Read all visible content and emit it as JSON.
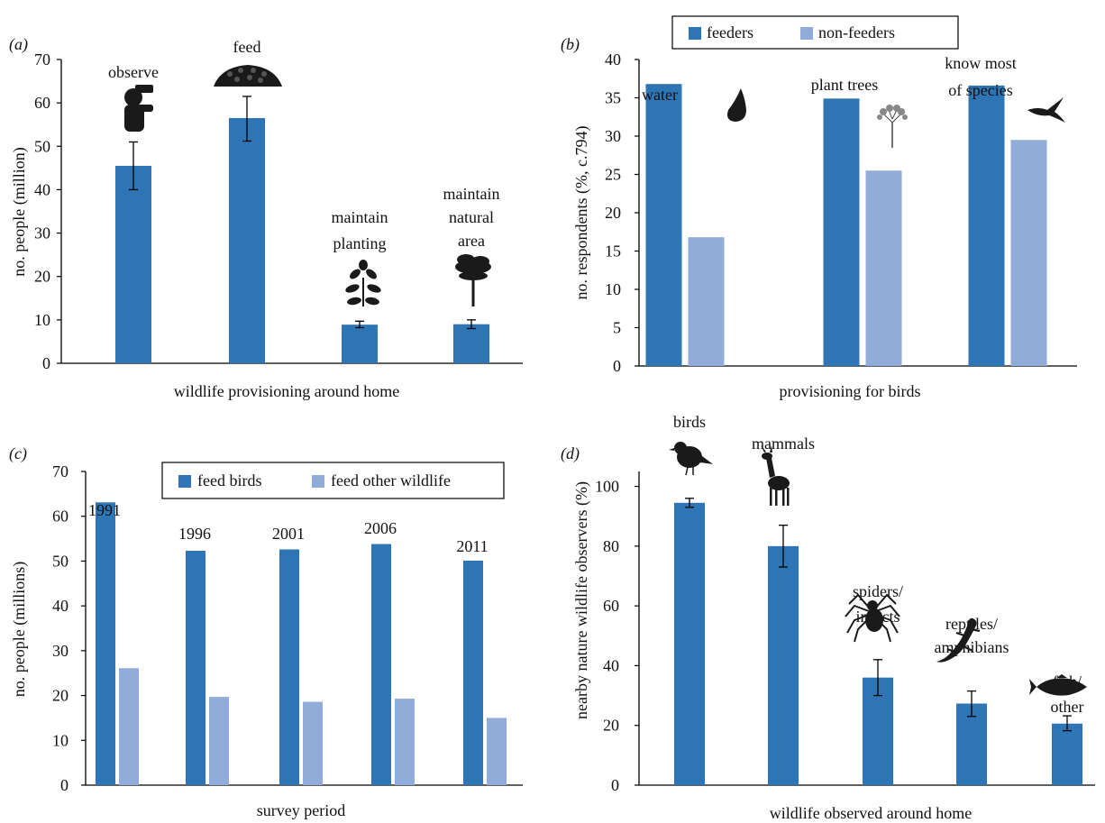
{
  "colors": {
    "primary": "#2E75B6",
    "secondary": "#91ACD9",
    "icon": "#1A1A1A",
    "axis": "#000000"
  },
  "chart_data": [
    {
      "panel_label": "(a)",
      "type": "bar",
      "xlabel": "wildlife provisioning around home",
      "ylabel": "no. people (million)",
      "ylim": [
        0,
        70
      ],
      "yticks": [
        0,
        10,
        20,
        30,
        40,
        50,
        60,
        70
      ],
      "categories": [
        "observe",
        "feed",
        "maintain planting",
        "maintain natural area"
      ],
      "category_labels": [
        [
          "observe"
        ],
        [
          "feed"
        ],
        [
          "maintain",
          "planting"
        ],
        [
          "maintain",
          "natural",
          "area"
        ]
      ],
      "icons": [
        "binoculars-person-icon",
        "seed-pile-icon",
        "leaf-branch-icon",
        "tree-icon"
      ],
      "series": [
        {
          "values": [
            45.5,
            56.5,
            8.9,
            9.0
          ],
          "error": [
            [
              40.0,
              51.0
            ],
            [
              51.2,
              61.5
            ],
            [
              8.2,
              9.7
            ],
            [
              8.0,
              10.0
            ]
          ]
        }
      ]
    },
    {
      "panel_label": "(b)",
      "type": "bar",
      "xlabel": "provisioning for birds",
      "ylabel": "no. respondents (%, c.794)",
      "ylim": [
        0,
        40
      ],
      "yticks": [
        0,
        5,
        10,
        15,
        20,
        25,
        30,
        35,
        40
      ],
      "categories": [
        "water",
        "plant trees",
        "know most of species"
      ],
      "category_labels": [
        [
          "water"
        ],
        [
          "plant trees"
        ],
        [
          "know most",
          "of species"
        ]
      ],
      "icons": [
        "water-drop-icon",
        "small-tree-icon",
        "swallow-bird-icon"
      ],
      "legend": [
        "feeders",
        "non-feeders"
      ],
      "series": [
        {
          "name": "feeders",
          "values": [
            36.8,
            34.9,
            36.6
          ]
        },
        {
          "name": "non-feeders",
          "values": [
            16.8,
            25.5,
            29.5
          ]
        }
      ]
    },
    {
      "panel_label": "(c)",
      "type": "bar",
      "xlabel": "survey period",
      "ylabel": "no. people (millions)",
      "ylim": [
        0,
        70
      ],
      "yticks": [
        0,
        10,
        20,
        30,
        40,
        50,
        60,
        70
      ],
      "categories": [
        "1991",
        "1996",
        "2001",
        "2006",
        "2011"
      ],
      "legend": [
        "feed birds",
        "feed other wildlife"
      ],
      "series": [
        {
          "name": "feed birds",
          "values": [
            63.1,
            52.3,
            52.6,
            53.8,
            50.1
          ]
        },
        {
          "name": "feed other wildlife",
          "values": [
            26.1,
            19.7,
            18.6,
            19.3,
            15.0
          ]
        }
      ]
    },
    {
      "panel_label": "(d)",
      "type": "bar",
      "xlabel": "wildlife observed around home",
      "ylabel": "nearby nature wildlife observers (%)",
      "ylim": [
        0,
        105
      ],
      "yticks": [
        0,
        20,
        40,
        60,
        80,
        100
      ],
      "categories": [
        "birds",
        "mammals",
        "spiders/insects",
        "reptiles/amphibians",
        "fish/other"
      ],
      "category_labels": [
        [
          "birds"
        ],
        [
          "mammals"
        ],
        [
          "spiders/",
          "insects"
        ],
        [
          "reptiles/",
          "amphibians"
        ],
        [
          "fish/",
          "other"
        ]
      ],
      "icons": [
        "robin-bird-icon",
        "deer-icon",
        "spider-icon",
        "lizard-icon",
        "fish-icon"
      ],
      "series": [
        {
          "values": [
            94.5,
            80.0,
            36.0,
            27.3,
            20.6
          ],
          "error": [
            [
              93.0,
              96.0
            ],
            [
              73.0,
              87.0
            ],
            [
              30.0,
              42.0
            ],
            [
              23.0,
              31.5
            ],
            [
              18.2,
              23.2
            ]
          ]
        }
      ]
    }
  ]
}
